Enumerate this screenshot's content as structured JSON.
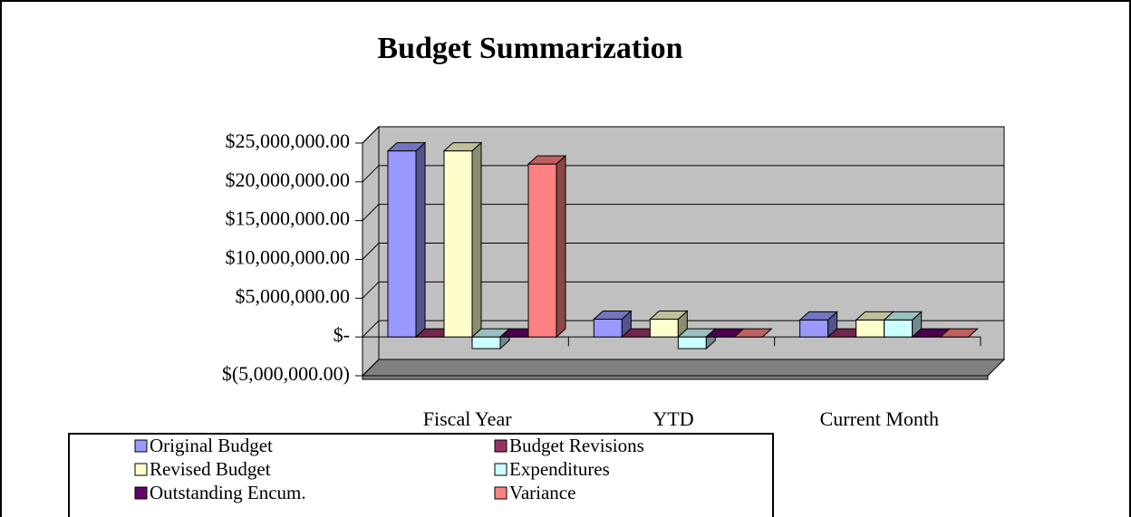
{
  "chart_data": {
    "type": "bar",
    "title": "Budget Summarization",
    "categories": [
      "Fiscal Year",
      "YTD",
      "Current Month"
    ],
    "series": [
      {
        "name": "Original Budget",
        "color": "#9999ff",
        "values": [
          24000000,
          2300000,
          2200000
        ]
      },
      {
        "name": "Budget Revisions",
        "color": "#993366",
        "values": [
          0,
          0,
          0
        ]
      },
      {
        "name": "Revised Budget",
        "color": "#ffffcc",
        "values": [
          24000000,
          2300000,
          2200000
        ]
      },
      {
        "name": "Expenditures",
        "color": "#ccffff",
        "values": [
          -1500000,
          -1500000,
          2200000
        ]
      },
      {
        "name": "Outstanding Encum.",
        "color": "#660066",
        "values": [
          0,
          0,
          0
        ]
      },
      {
        "name": "Variance",
        "color": "#ff8080",
        "values": [
          22300000,
          0,
          0
        ]
      }
    ],
    "ylim": [
      -5000000,
      25000000
    ],
    "yticks": [
      {
        "value": -5000000,
        "label": "$(5,000,000.00)"
      },
      {
        "value": 0,
        "label": "$-"
      },
      {
        "value": 5000000,
        "label": "$5,000,000.00"
      },
      {
        "value": 10000000,
        "label": "$10,000,000.00"
      },
      {
        "value": 15000000,
        "label": "$15,000,000.00"
      },
      {
        "value": 20000000,
        "label": "$20,000,000.00"
      },
      {
        "value": 25000000,
        "label": "$25,000,000.00"
      }
    ],
    "grid": true,
    "legend": "bottom"
  }
}
